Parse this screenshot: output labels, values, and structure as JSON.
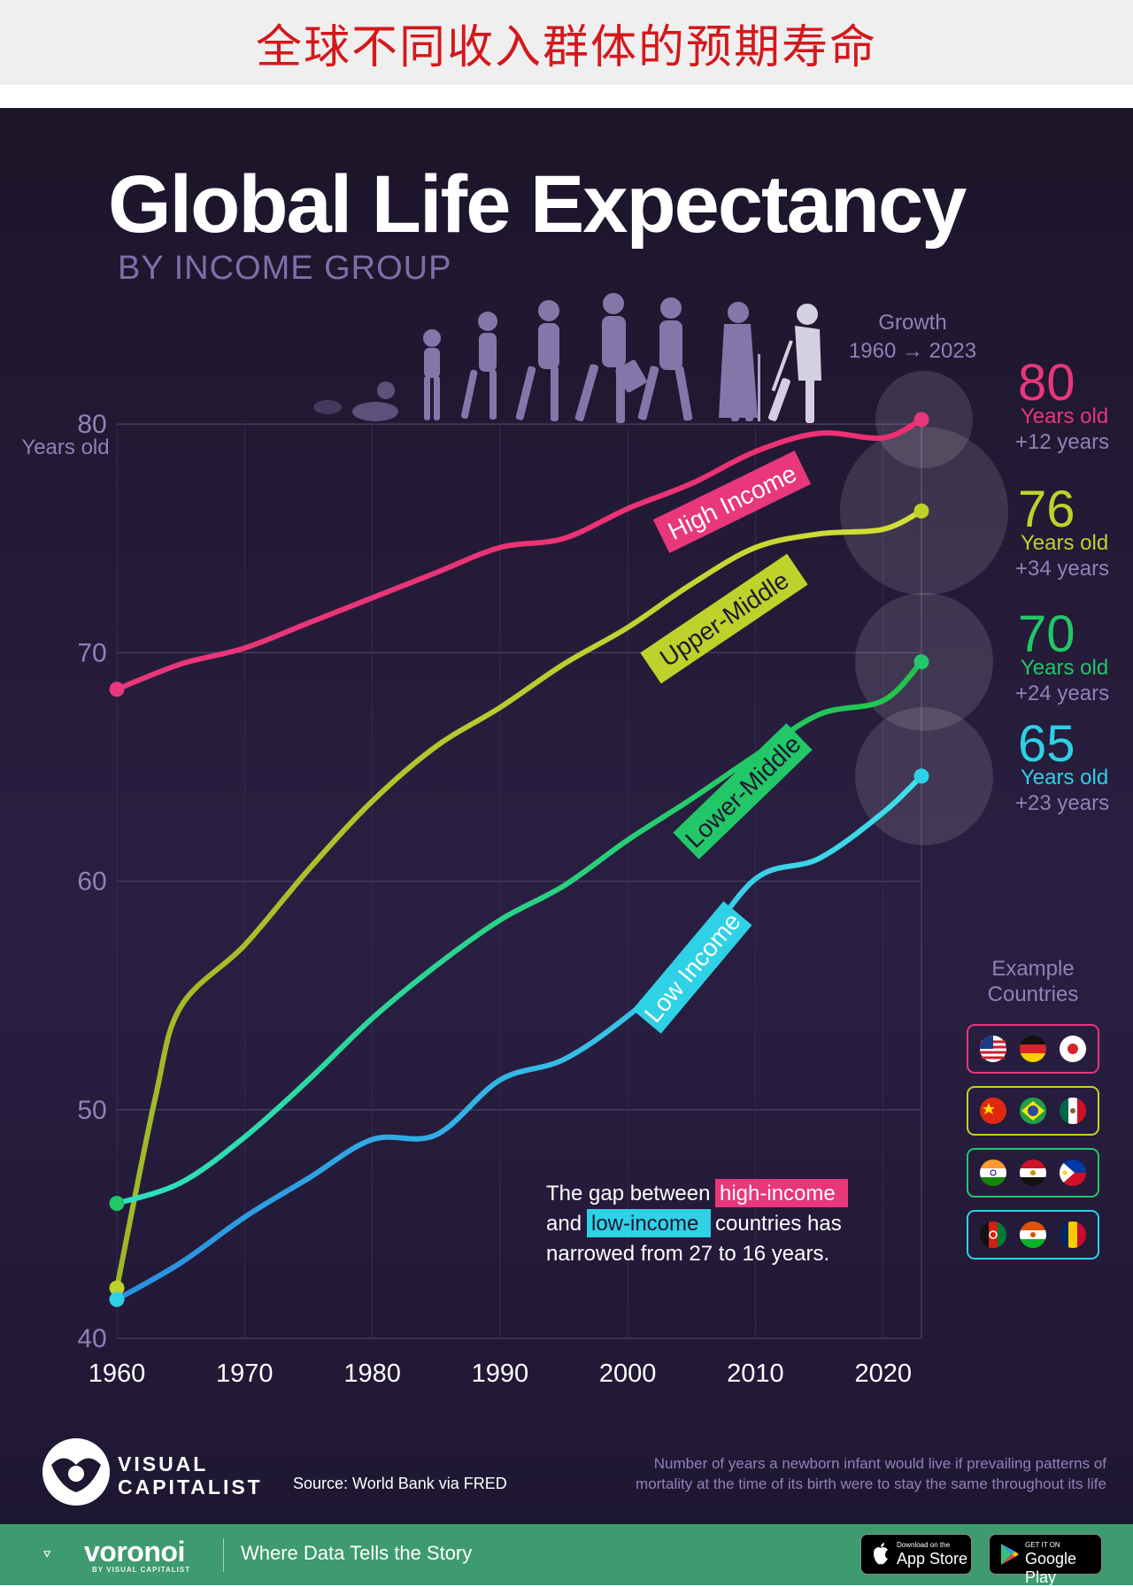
{
  "banner_title": "全球不同收入群体的预期寿命",
  "title": "Global Life Expectancy",
  "subtitle": "BY INCOME GROUP",
  "growth_header": {
    "line1": "Growth",
    "line2": "1960 → 2023"
  },
  "chart_data": {
    "type": "line",
    "title": "Global Life Expectancy",
    "subtitle": "BY INCOME GROUP",
    "xlim": [
      1960,
      2023
    ],
    "ylim": [
      40,
      82
    ],
    "x_ticks": [
      "1960",
      "1970",
      "1980",
      "1990",
      "2000",
      "2010",
      "2020"
    ],
    "y_ticks": [
      "40",
      "50",
      "60",
      "70",
      "80"
    ],
    "y_unit_label": "Years old",
    "grid": true,
    "series": [
      {
        "name": "High Income",
        "color": "#e8377a",
        "x": [
          1960,
          1965,
          1970,
          1975,
          1980,
          1985,
          1990,
          1995,
          2000,
          2005,
          2010,
          2015,
          2020,
          2023
        ],
        "y": [
          68.4,
          69.5,
          70.2,
          71.3,
          72.4,
          73.5,
          74.6,
          75.0,
          76.3,
          77.4,
          78.8,
          79.6,
          79.4,
          80.2
        ]
      },
      {
        "name": "Upper-Middle",
        "color": "#bfd22b",
        "x": [
          1960,
          1963,
          1965,
          1970,
          1975,
          1980,
          1985,
          1990,
          1995,
          2000,
          2005,
          2010,
          2015,
          2020,
          2023
        ],
        "y": [
          42.2,
          50.5,
          54.5,
          57.2,
          60.5,
          63.5,
          65.9,
          67.6,
          69.5,
          71.1,
          73.0,
          74.6,
          75.2,
          75.4,
          76.2
        ]
      },
      {
        "name": "Lower-Middle",
        "color": "#22c768",
        "x": [
          1960,
          1965,
          1970,
          1975,
          1980,
          1985,
          1990,
          1995,
          2000,
          2005,
          2010,
          2015,
          2020,
          2023
        ],
        "y": [
          45.9,
          46.8,
          48.8,
          51.3,
          54.0,
          56.3,
          58.3,
          59.8,
          61.8,
          63.6,
          65.5,
          67.3,
          67.9,
          69.6
        ]
      },
      {
        "name": "Low Income",
        "color": "#2ed1e6",
        "x": [
          1960,
          1965,
          1970,
          1975,
          1980,
          1985,
          1990,
          1995,
          2000,
          2005,
          2010,
          2015,
          2020,
          2023
        ],
        "y": [
          41.7,
          43.3,
          45.3,
          47.0,
          48.7,
          48.9,
          51.3,
          52.2,
          54.1,
          56.6,
          60.1,
          61.0,
          63.0,
          64.6
        ]
      }
    ]
  },
  "line_labels": [
    "High Income",
    "Upper-Middle",
    "Lower-Middle",
    "Low Income"
  ],
  "end_values": [
    {
      "value": "80",
      "unit": "Years old",
      "growth": "+12 years",
      "color": "#e8377a"
    },
    {
      "value": "76",
      "unit": "Years old",
      "growth": "+34  years",
      "color": "#bfd22b"
    },
    {
      "value": "70",
      "unit": "Years old",
      "growth": "+24 years",
      "color": "#22c768"
    },
    {
      "value": "65",
      "unit": "Years old",
      "growth": "+23 years",
      "color": "#2ed1e6"
    }
  ],
  "gap_note": {
    "part1": "The gap between",
    "high": "high-income",
    "part2": "and",
    "low": "low-income",
    "part3": "countries has",
    "line3": "narrowed from 27 to 16 years."
  },
  "example_countries": {
    "title_line1": "Example",
    "title_line2": "Countries",
    "groups": [
      {
        "border": "#e8377a",
        "flags": [
          "usa-flag-icon",
          "germany-flag-icon",
          "japan-flag-icon"
        ]
      },
      {
        "border": "#bfd22b",
        "flags": [
          "china-flag-icon",
          "brazil-flag-icon",
          "mexico-flag-icon"
        ]
      },
      {
        "border": "#22c768",
        "flags": [
          "india-flag-icon",
          "egypt-flag-icon",
          "philippines-flag-icon"
        ]
      },
      {
        "border": "#2ed1e6",
        "flags": [
          "afghanistan-flag-icon",
          "niger-flag-icon",
          "chad-flag-icon"
        ]
      }
    ]
  },
  "vc_logo": {
    "line1": "VISUAL",
    "line2": "CAPITALIST"
  },
  "source": "Source: World Bank via FRED",
  "definition": {
    "line1": "Number of years a newborn infant would live if prevailing patterns of",
    "line2": "mortality at the time of its birth were to stay the same throughout its life"
  },
  "footer": {
    "brand": "voronoi",
    "brand_sub": "BY VISUAL CAPITALIST",
    "tagline": "Where Data Tells the Story",
    "app_store_small": "Download on the",
    "app_store_big": "App Store",
    "google_small": "GET IT ON",
    "google_big": "Google Play"
  }
}
